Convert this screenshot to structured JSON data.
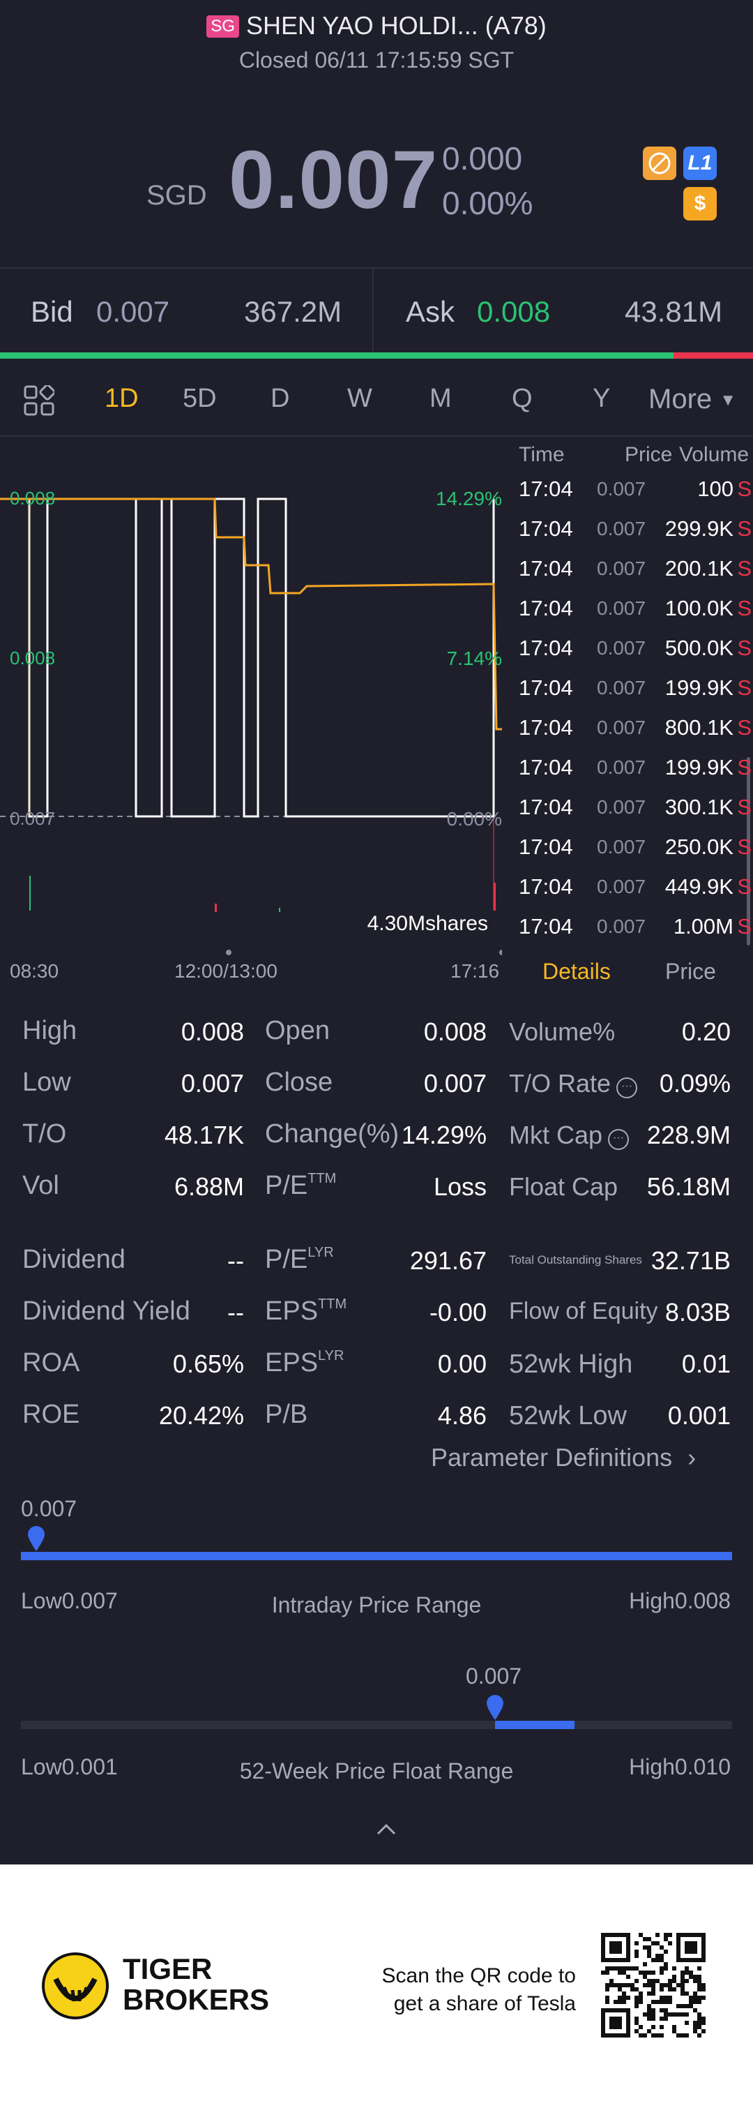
{
  "header": {
    "market_badge": "SG",
    "stock_name": "SHEN YAO HOLDI... (A78)",
    "status": "Closed 06/11 17:15:59 SGT",
    "currency": "SGD",
    "price": "0.007",
    "change": "0.000",
    "change_pct": "0.00%",
    "badges": [
      {
        "icon": "no-margin-icon",
        "color": "#f2a33a"
      },
      {
        "icon": "level1-icon",
        "label": "L1",
        "color": "#3b7cf4"
      },
      {
        "icon": "dollar-icon",
        "label": "$",
        "color": "#f5a623"
      }
    ]
  },
  "bidask": {
    "bid_label": "Bid",
    "bid_price": "0.007",
    "bid_volume": "367.2M",
    "ask_label": "Ask",
    "ask_price": "0.008",
    "ask_volume": "43.81M",
    "bid_share": 0.894
  },
  "tabs": {
    "items": [
      "1D",
      "5D",
      "D",
      "W",
      "M",
      "Q",
      "Y"
    ],
    "active": "1D",
    "more": "More"
  },
  "chart": {
    "price_labels": {
      "top": "0.008",
      "mid": "0.008",
      "bottom": "0.007"
    },
    "pct_labels": {
      "top": "14.29%",
      "mid": "7.14%",
      "bottom": "0.00%"
    },
    "volume_label": "4.30Mshares",
    "x_labels": {
      "start": "08:30",
      "mid": "12:00/13:00",
      "end": "17:16"
    }
  },
  "ticks": {
    "headers": {
      "time": "Time",
      "price": "Price",
      "volume": "Volume"
    },
    "rows": [
      {
        "time": "17:04",
        "price": "0.007",
        "volume": "100",
        "side": "S"
      },
      {
        "time": "17:04",
        "price": "0.007",
        "volume": "299.9K",
        "side": "S"
      },
      {
        "time": "17:04",
        "price": "0.007",
        "volume": "200.1K",
        "side": "S"
      },
      {
        "time": "17:04",
        "price": "0.007",
        "volume": "100.0K",
        "side": "S"
      },
      {
        "time": "17:04",
        "price": "0.007",
        "volume": "500.0K",
        "side": "S"
      },
      {
        "time": "17:04",
        "price": "0.007",
        "volume": "199.9K",
        "side": "S"
      },
      {
        "time": "17:04",
        "price": "0.007",
        "volume": "800.1K",
        "side": "S"
      },
      {
        "time": "17:04",
        "price": "0.007",
        "volume": "199.9K",
        "side": "S"
      },
      {
        "time": "17:04",
        "price": "0.007",
        "volume": "300.1K",
        "side": "S"
      },
      {
        "time": "17:04",
        "price": "0.007",
        "volume": "250.0K",
        "side": "S"
      },
      {
        "time": "17:04",
        "price": "0.007",
        "volume": "449.9K",
        "side": "S"
      },
      {
        "time": "17:04",
        "price": "0.007",
        "volume": "1.00M",
        "side": "S"
      }
    ]
  },
  "subtabs": {
    "details": "Details",
    "price": "Price"
  },
  "stats": {
    "high_label": "High",
    "high": "0.008",
    "low_label": "Low",
    "low": "0.007",
    "to_label": "T/O",
    "to": "48.17K",
    "vol_label": "Vol",
    "vol": "6.88M",
    "open_label": "Open",
    "open": "0.008",
    "close_label": "Close",
    "close": "0.007",
    "change_pct_label": "Change(%)",
    "change_pct": "14.29%",
    "pe_ttm_label": "P/E",
    "pe_ttm_sup": "TTM",
    "pe_ttm": "Loss",
    "volume_pct_label": "Volume%",
    "volume_pct": "0.20",
    "to_rate_label": "T/O Rate",
    "to_rate": "0.09%",
    "mkt_cap_label": "Mkt Cap",
    "mkt_cap": "228.9M",
    "float_cap_label": "Float Cap",
    "float_cap": "56.18M",
    "dividend_label": "Dividend",
    "dividend": "--",
    "div_yield_label": "Dividend Yield",
    "div_yield": "--",
    "roa_label": "ROA",
    "roa": "0.65%",
    "roe_label": "ROE",
    "roe": "20.42%",
    "pe_lyr_label": "P/E",
    "pe_lyr_sup": "LYR",
    "pe_lyr": "291.67",
    "eps_ttm_label": "EPS",
    "eps_ttm_sup": "TTM",
    "eps_ttm": "-0.00",
    "eps_lyr_label": "EPS",
    "eps_lyr_sup": "LYR",
    "eps_lyr": "0.00",
    "pb_label": "P/B",
    "pb": "4.86",
    "total_shares_label": "Total Outstanding Shares",
    "total_shares": "32.71B",
    "flow_equity_label": "Flow of Equity",
    "flow_equity": "8.03B",
    "wk52_high_label": "52wk High",
    "wk52_high": "0.01",
    "wk52_low_label": "52wk Low",
    "wk52_low": "0.001",
    "param_def": "Parameter Definitions"
  },
  "intraday_range": {
    "current": "0.007",
    "low_label": "Low",
    "low": "0.007",
    "title": "Intraday Price Range",
    "high_label": "High",
    "high": "0.008",
    "position": 0.0
  },
  "week52_range": {
    "current": "0.007",
    "low_label": "Low",
    "low": "0.001",
    "title": "52-Week Price Float Range",
    "high_label": "High",
    "high": "0.010",
    "position": 0.667
  },
  "footer": {
    "brand_line1": "TIGER",
    "brand_line2": "BROKERS",
    "qr_text1": "Scan the QR code to",
    "qr_text2": "get a share of Tesla"
  },
  "colors": {
    "background": "#1f1f2b",
    "up": "#2bc273",
    "down": "#e8344c",
    "accent": "#f5b924",
    "range_bar": "#3b6cf0"
  }
}
